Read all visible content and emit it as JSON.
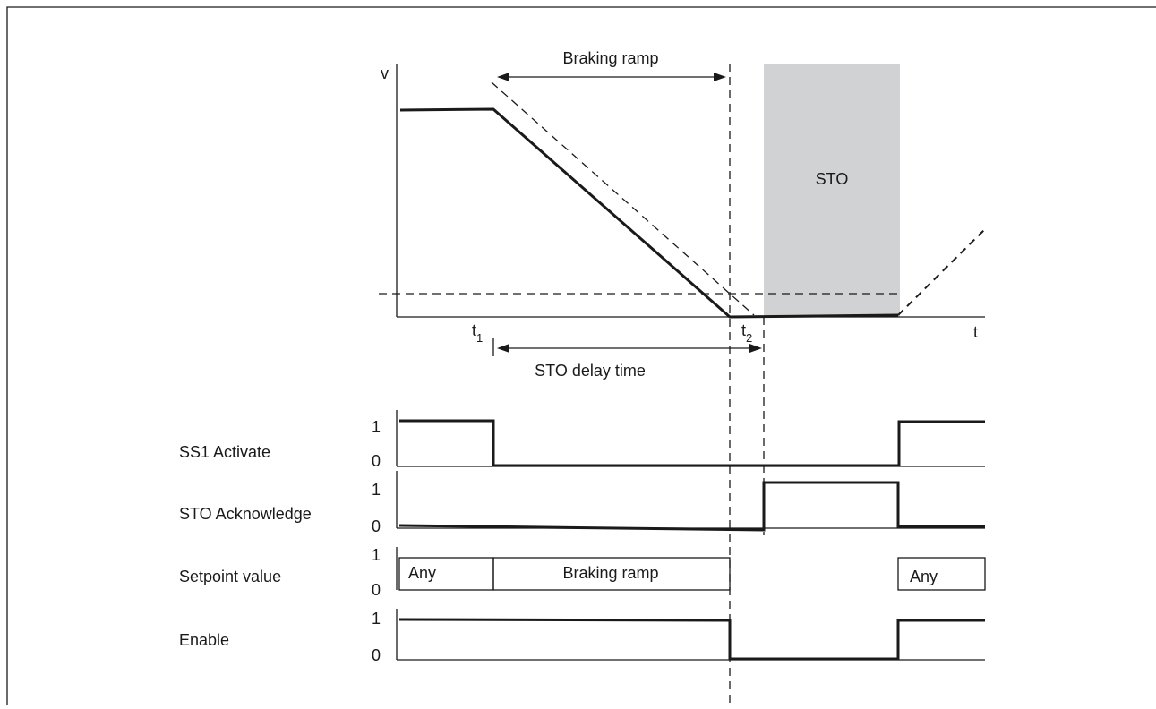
{
  "speed_graph": {
    "y_axis_label": "v",
    "x_axis_label": "t",
    "t1": {
      "main": "t",
      "sub": "1"
    },
    "t2": {
      "main": "t",
      "sub": "2"
    },
    "braking_ramp_label": "Braking ramp",
    "sto_delay_label": "STO delay time",
    "sto_region_label": "STO",
    "sto_region_color": "#d1d2d4"
  },
  "signals": [
    {
      "name": "SS1 Activate",
      "high": "1",
      "low": "0"
    },
    {
      "name": "STO Acknowledge",
      "high": "1",
      "low": "0"
    },
    {
      "name": "Setpoint value",
      "high": "1",
      "low": "0",
      "segments": [
        "Any",
        "Braking ramp",
        "Any"
      ]
    },
    {
      "name": "Enable",
      "high": "1",
      "low": "0"
    }
  ]
}
